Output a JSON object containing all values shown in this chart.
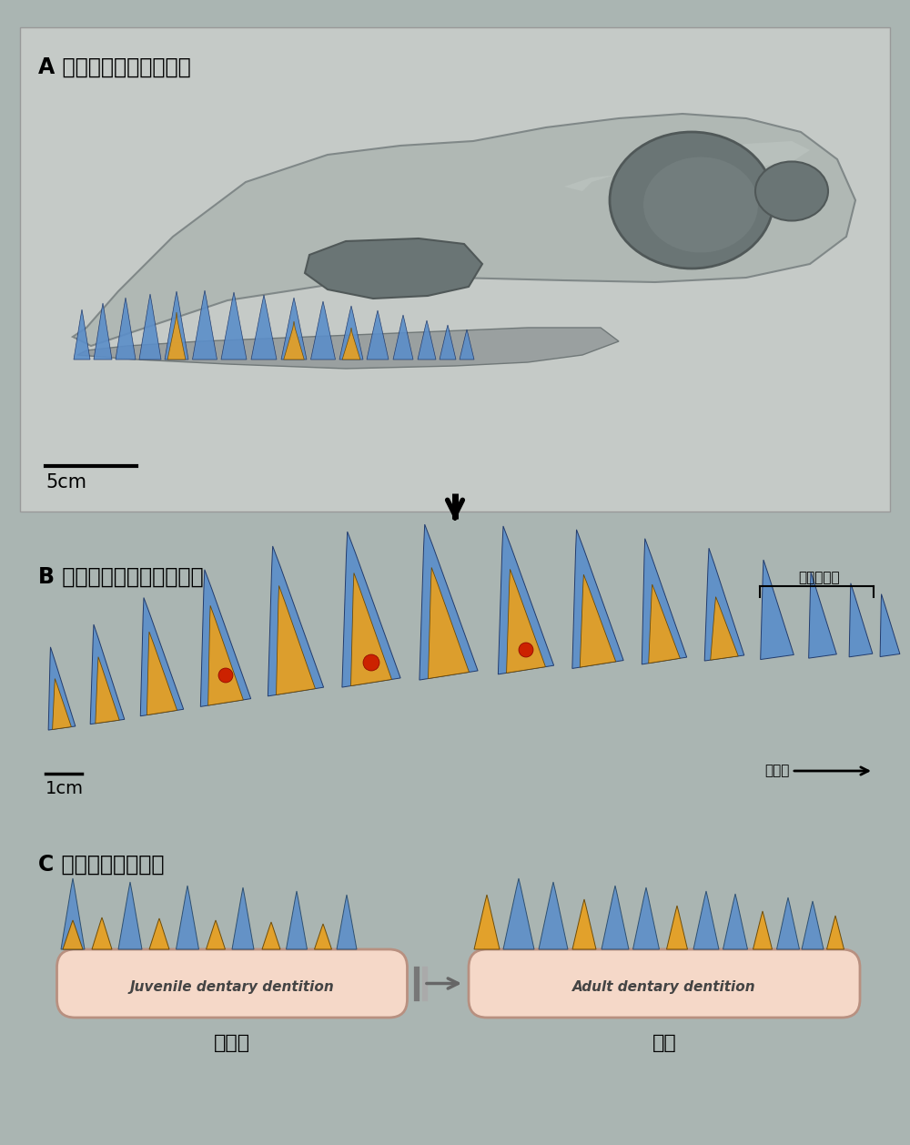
{
  "bg_color": "#aab5b2",
  "panel_bg_A": "#c8ccc8",
  "panel_bg_B": "#aab5b2",
  "title_A": "A 頭蓋骨の立体構築画像",
  "title_B": "B 上類歯列の立体構築画像",
  "title_C": "C 下類歯列の模式図",
  "label_juv": "Juvenile dentary dentition",
  "label_adult": "Adult dentary dentition",
  "label_child": "子ども",
  "label_adult_jp": "大人",
  "scale_A": "5cm",
  "scale_B": "1cm",
  "label_front_tooth": "前上類骨歯",
  "label_front_side": "前歯側",
  "blue_color": "#5b8ec9",
  "orange_color": "#e8a020",
  "red_color": "#cc2200",
  "jaw_color": "#f5d8c8",
  "jaw_edge_color": "#b89080",
  "text_color": "#111111"
}
